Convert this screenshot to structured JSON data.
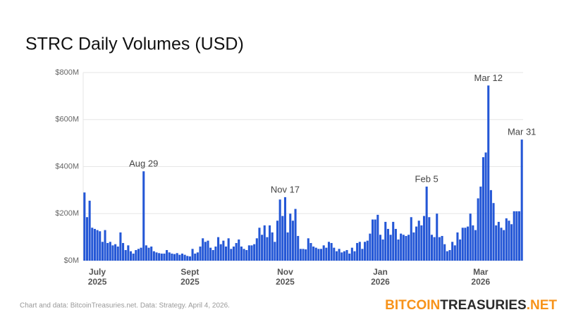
{
  "chart_data": {
    "type": "bar",
    "title": "STRC Daily Volumes (USD)",
    "source": "Chart and data: BitcoinTreasuries.net. Data: Strategy. April 4, 2026.",
    "logo": [
      "BITCOIN",
      "TREASURIES",
      ".NET"
    ],
    "color": "#2457d6",
    "grid": true,
    "ylim": [
      0,
      800
    ],
    "yticks": [
      {
        "value": 0,
        "label": "$0M"
      },
      {
        "value": 200,
        "label": "$200M"
      },
      {
        "value": 400,
        "label": "$400M"
      },
      {
        "value": 600,
        "label": "$600M"
      },
      {
        "value": 800,
        "label": "$800M"
      }
    ],
    "categories": [
      null,
      null,
      null,
      null,
      null,
      "July 2025",
      null,
      null,
      null,
      null,
      null,
      null,
      null,
      null,
      null,
      null,
      null,
      null,
      null,
      null,
      null,
      null,
      null,
      null,
      null,
      null,
      null,
      null,
      null,
      null,
      null,
      null,
      null,
      null,
      null,
      null,
      null,
      null,
      null,
      null,
      null,
      "Sept 2025",
      null,
      null,
      null,
      null,
      null,
      null,
      null,
      null,
      null,
      null,
      null,
      null,
      null,
      null,
      null,
      null,
      null,
      null,
      null,
      null,
      null,
      null,
      null,
      null,
      null,
      null,
      null,
      null,
      null,
      null,
      null,
      null,
      null,
      null,
      null,
      null,
      "Nov 2025",
      null,
      null,
      null,
      null,
      null,
      null,
      null,
      null,
      null,
      null,
      null,
      null,
      null,
      null,
      null,
      null,
      null,
      null,
      null,
      null,
      null,
      null,
      null,
      null,
      null,
      null,
      null,
      null,
      null,
      null,
      null,
      null,
      null,
      null,
      null,
      null,
      "Jan 2026",
      null,
      null,
      null,
      null,
      null,
      null,
      null,
      null,
      null,
      null,
      null,
      null,
      null,
      null,
      null,
      null,
      null,
      null,
      null,
      null,
      null,
      null,
      null,
      null,
      null,
      null,
      null,
      null,
      null,
      null,
      null,
      null,
      null,
      null,
      null,
      null,
      null,
      null,
      "Mar 2026",
      null,
      null,
      null,
      null,
      null,
      null,
      null,
      null,
      null,
      null,
      null,
      null,
      null,
      null,
      null,
      null
    ],
    "values": [
      290,
      185,
      255,
      140,
      135,
      130,
      125,
      80,
      130,
      75,
      80,
      65,
      70,
      60,
      120,
      75,
      45,
      65,
      40,
      30,
      45,
      50,
      55,
      380,
      65,
      55,
      60,
      40,
      35,
      32,
      30,
      30,
      45,
      35,
      30,
      28,
      32,
      25,
      30,
      25,
      20,
      18,
      50,
      30,
      35,
      60,
      95,
      80,
      85,
      55,
      45,
      60,
      100,
      70,
      85,
      60,
      95,
      50,
      60,
      75,
      90,
      60,
      50,
      45,
      65,
      65,
      70,
      95,
      140,
      110,
      150,
      100,
      150,
      120,
      80,
      170,
      260,
      190,
      270,
      120,
      200,
      170,
      220,
      105,
      50,
      50,
      48,
      95,
      75,
      60,
      55,
      50,
      50,
      65,
      55,
      80,
      75,
      55,
      40,
      50,
      35,
      40,
      45,
      30,
      55,
      40,
      75,
      80,
      50,
      80,
      85,
      115,
      175,
      175,
      195,
      110,
      90,
      165,
      135,
      110,
      165,
      135,
      90,
      115,
      110,
      105,
      110,
      185,
      120,
      145,
      170,
      150,
      190,
      315,
      185,
      110,
      100,
      200,
      100,
      105,
      70,
      40,
      45,
      80,
      65,
      120,
      90,
      140,
      140,
      145,
      200,
      150,
      130,
      265,
      315,
      440,
      460,
      745,
      300,
      245,
      150,
      165,
      140,
      130,
      180,
      170,
      155,
      210,
      210,
      210,
      515
    ],
    "annotations": [
      {
        "text": "Aug 29",
        "at": 23
      },
      {
        "text": "Nov 17",
        "at": 78
      },
      {
        "text": "Feb 5",
        "at": 133
      },
      {
        "text": "Mar 12",
        "at": 157
      },
      {
        "text": "Mar 31",
        "at": 170
      }
    ]
  }
}
